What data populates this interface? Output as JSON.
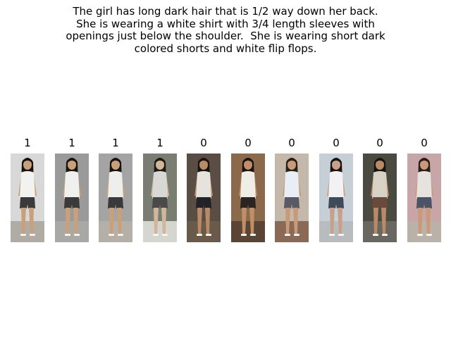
{
  "caption_lines": [
    "The girl has long dark hair that is 1/2 way down her back.",
    "She is wearing a white shirt with 3/4 length sleeves with",
    "openings just below the shoulder.  She is wearing short dark",
    "colored shorts and white flip flops."
  ],
  "panels": [
    {
      "label": "1",
      "bg": "#d8d8d8",
      "shirt": "#f2f2f0",
      "shorts": "#3a3a3a",
      "hair": "#1a1410",
      "skin": "#c9a07a",
      "floor": "#b0aca4"
    },
    {
      "label": "1",
      "bg": "#9a9a9a",
      "shirt": "#f0f0ee",
      "shorts": "#3a3a3a",
      "hair": "#1a1410",
      "skin": "#c9a07a",
      "floor": "#a8a8a4"
    },
    {
      "label": "1",
      "bg": "#a4a4a4",
      "shirt": "#eeeeec",
      "shorts": "#3a3a3a",
      "hair": "#1a1410",
      "skin": "#c9a07a",
      "floor": "#b4b0a8"
    },
    {
      "label": "1",
      "bg": "#7a7d72",
      "shirt": "#d8d8d6",
      "shorts": "#4a4a4a",
      "hair": "#1e1a16",
      "skin": "#d2b69a",
      "floor": "#d6d6d0"
    },
    {
      "label": "0",
      "bg": "#5a4e44",
      "shirt": "#e6e2dc",
      "shorts": "#222326",
      "hair": "#1a1410",
      "skin": "#b88a66",
      "floor": "#6a5a4a"
    },
    {
      "label": "0",
      "bg": "#8a6a4a",
      "shirt": "#f0ece6",
      "shorts": "#2a2422",
      "hair": "#1a1410",
      "skin": "#c08e68",
      "floor": "#5a4434"
    },
    {
      "label": "0",
      "bg": "#c4b8aa",
      "shirt": "#e8eef4",
      "shorts": "#5a5a66",
      "hair": "#2a2018",
      "skin": "#c89a78",
      "floor": "#8a6a56"
    },
    {
      "label": "0",
      "bg": "#c6cfd6",
      "shirt": "#f2f2f4",
      "shorts": "#3c4a5a",
      "hair": "#1a1410",
      "skin": "#c8a088",
      "floor": "#b8bcbe"
    },
    {
      "label": "0",
      "bg": "#4a4a40",
      "shirt": "#d8d2c6",
      "shorts": "#6a4a3a",
      "hair": "#1a1410",
      "skin": "#b88a66",
      "floor": "#6a6660"
    },
    {
      "label": "0",
      "bg": "#c8a6a8",
      "shirt": "#e6e2de",
      "shorts": "#4a5466",
      "hair": "#2a1e18",
      "skin": "#c89a7a",
      "floor": "#bab2a8"
    }
  ]
}
